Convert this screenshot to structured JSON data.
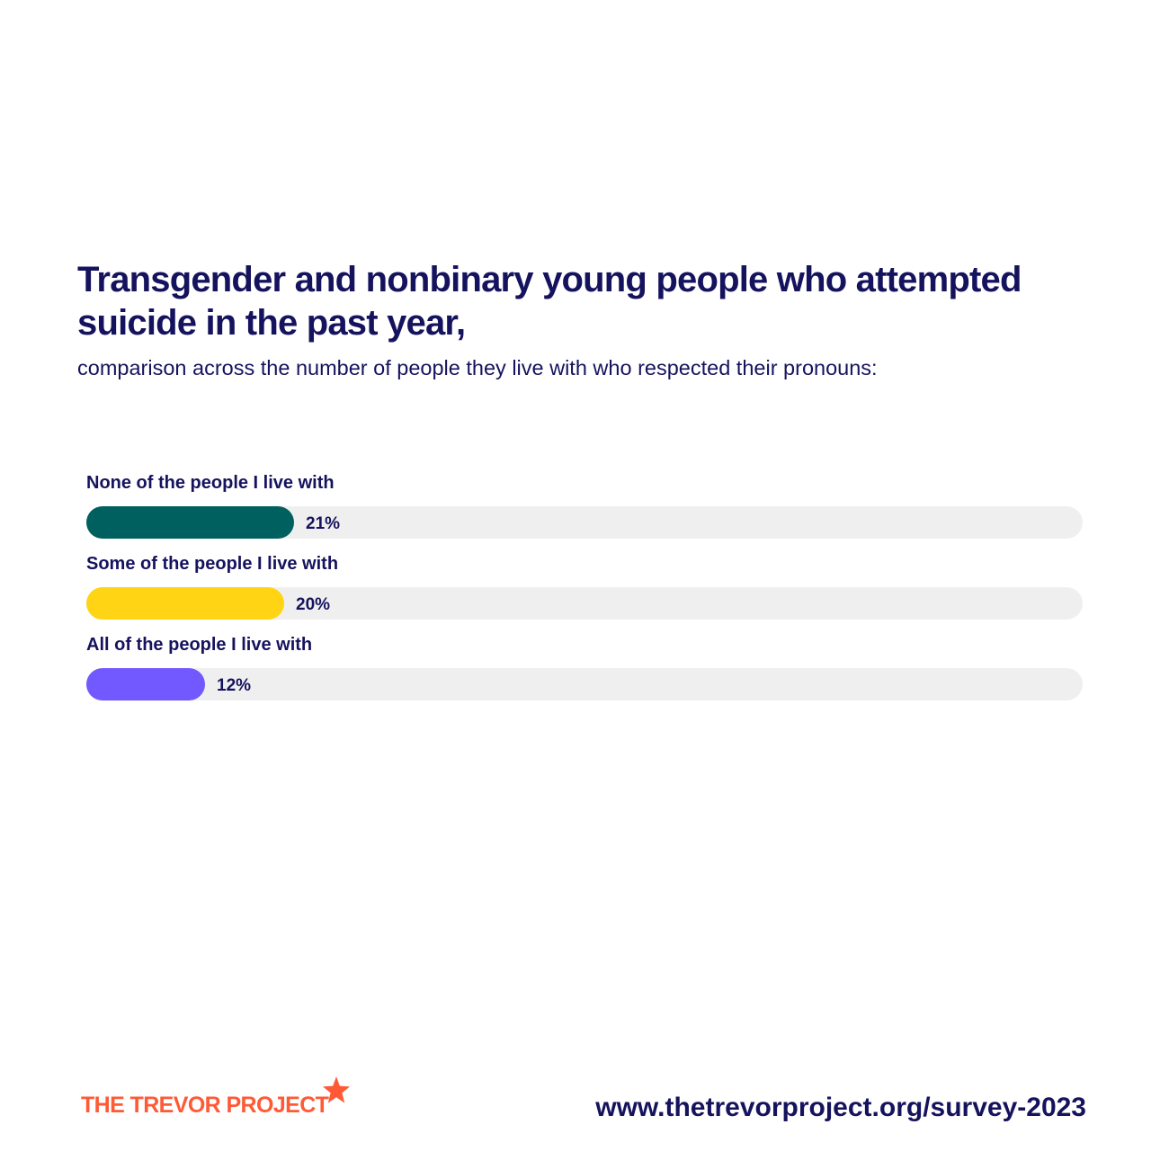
{
  "header": {
    "title": "Transgender and nonbinary young people who attempted suicide in the past year,",
    "subtitle": "comparison across the number of people they live with who respected their pronouns:"
  },
  "chart_data": {
    "type": "bar",
    "orientation": "horizontal",
    "categories": [
      "None of the people I live with",
      "Some of the people I live with",
      "All of the people I live with"
    ],
    "values": [
      21,
      20,
      12
    ],
    "value_labels": [
      "21%",
      "20%",
      "12%"
    ],
    "unit": "%",
    "xlim": [
      0,
      100
    ],
    "colors": [
      "#00605f",
      "#ffd414",
      "#7159ff"
    ],
    "track_color": "#efefef",
    "grid": false,
    "legend": "none"
  },
  "footer": {
    "brand": "THE TREVOR PROJECT",
    "brand_color": "#ff5a36",
    "brand_icon": "star-icon",
    "url": "www.thetrevorproject.org/survey-2023"
  },
  "colors": {
    "text": "#16135e",
    "background": "#ffffff"
  }
}
